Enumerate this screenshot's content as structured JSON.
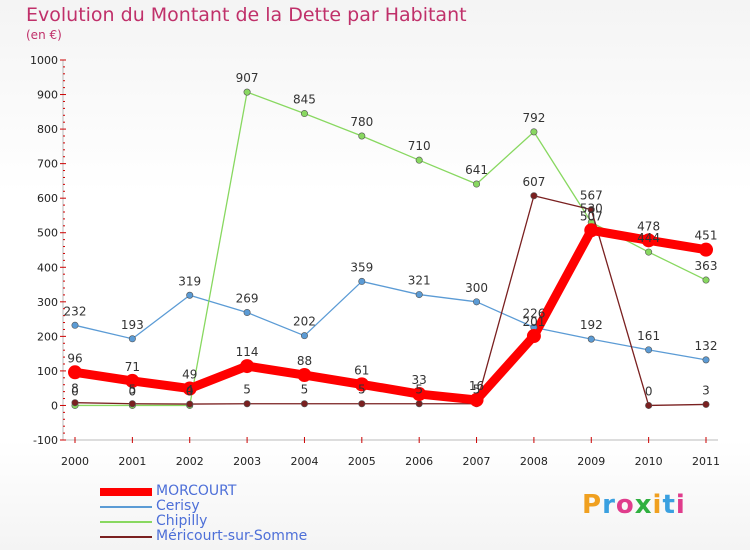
{
  "title": "Evolution du Montant de la Dette par Habitant",
  "subtitle": "(en €)",
  "logo_text": "Proxiti",
  "colors": {
    "title": "#c0306a",
    "axis": "#cc0000",
    "grid": "#dddddd",
    "legend_text": "#4d6fd8"
  },
  "chart_data": {
    "type": "line",
    "title": "Evolution du Montant de la Dette par Habitant",
    "subtitle": "(en €)",
    "xlabel": "",
    "ylabel": "",
    "ylim": [
      -100,
      1000
    ],
    "yticks": [
      -100,
      0,
      100,
      200,
      300,
      400,
      500,
      600,
      700,
      800,
      900,
      1000
    ],
    "grid": false,
    "legend_position": "bottom-left",
    "x": [
      "2000",
      "2001",
      "2002",
      "2003",
      "2004",
      "2005",
      "2006",
      "2007",
      "2008",
      "2009",
      "2010",
      "2011"
    ],
    "series": [
      {
        "name": "MORCOURT",
        "color": "#ff0000",
        "values": [
          96,
          71,
          49,
          114,
          88,
          61,
          33,
          16,
          201,
          507,
          478,
          451
        ],
        "labels": [
          "96",
          "71",
          "49",
          "114",
          "88",
          "61",
          "33",
          "16",
          "201",
          "507",
          "478",
          "451"
        ]
      },
      {
        "name": "Cerisy",
        "color": "#5b9bd5",
        "values": [
          232,
          193,
          319,
          269,
          202,
          359,
          321,
          300,
          226,
          192,
          161,
          132
        ],
        "labels": [
          "232",
          "193",
          "319",
          "269",
          "202",
          "359",
          "321",
          "300",
          "226",
          "192",
          "161",
          "132"
        ]
      },
      {
        "name": "Chipilly",
        "color": "#88d860",
        "values": [
          0,
          0,
          0,
          907,
          845,
          780,
          710,
          641,
          792,
          530,
          444,
          363
        ],
        "labels": [
          "0",
          "0",
          "0",
          "907",
          "845",
          "780",
          "710",
          "641",
          "792",
          "530",
          "444",
          "363"
        ]
      },
      {
        "name": "Méricourt-sur-Somme",
        "color": "#7a2020",
        "values": [
          8,
          5,
          4,
          5,
          5,
          5,
          5,
          5,
          607,
          567,
          0,
          3
        ],
        "labels": [
          "8",
          "5",
          "4",
          "5",
          "5",
          "5",
          "5",
          "5",
          "607",
          "567",
          "0",
          "3"
        ]
      }
    ]
  }
}
